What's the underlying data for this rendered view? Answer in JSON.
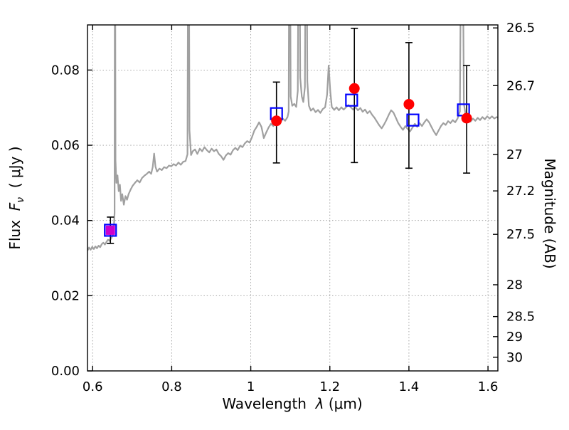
{
  "figure": {
    "background": "#ffffff"
  },
  "chart_data": {
    "type": "line",
    "title": "",
    "xlabel_parts": {
      "prefix": "Wavelength  ",
      "symbol": "λ",
      "suffix": " (μm)"
    },
    "ylabel_parts": {
      "prefix": "Flux  ",
      "symbol": "F",
      "subscript": "ν",
      "suffix": "  ( μJy )"
    },
    "y2label": "Magnitude (AB)",
    "axes": {
      "xlim": [
        0.587,
        1.625
      ],
      "ylim": [
        0,
        0.092
      ],
      "grid": true,
      "xticks": {
        "values": [
          0.6,
          0.8,
          1.0,
          1.2,
          1.4,
          1.6
        ],
        "labels": [
          "0.6",
          "0.8",
          "1",
          "1.2",
          "1.4",
          "1.6"
        ]
      },
      "yticks": {
        "values": [
          0.0,
          0.02,
          0.04,
          0.06,
          0.08
        ],
        "labels": [
          "0.00",
          "0.02",
          "0.04",
          "0.06",
          "0.08"
        ]
      },
      "y2ticks": {
        "mag_zeropoint": 23.9,
        "values": [
          26.5,
          26.7,
          27,
          27.2,
          27.5,
          28,
          28.5,
          29,
          30
        ],
        "labels": [
          "26.5",
          "26.7",
          "27",
          "27.2",
          "27.5",
          "28",
          "28.5",
          "29",
          "30"
        ]
      }
    },
    "style": {
      "spectrum_color": "#a0a0a0",
      "model_marker_color": "#0000ff",
      "observed_marker_color": "#ff0000",
      "observed_first_marker_color": "#cc00cc",
      "errorbar_color": "#000000",
      "grid_color": "#9a9a9a",
      "axis_color": "#000000"
    },
    "series": [
      {
        "name": "model-spectrum",
        "kind": "line",
        "points": [
          [
            0.587,
            0.032
          ],
          [
            0.591,
            0.0328
          ],
          [
            0.595,
            0.0322
          ],
          [
            0.599,
            0.033
          ],
          [
            0.603,
            0.0324
          ],
          [
            0.607,
            0.0331
          ],
          [
            0.611,
            0.0326
          ],
          [
            0.615,
            0.0333
          ],
          [
            0.619,
            0.0329
          ],
          [
            0.623,
            0.0337
          ],
          [
            0.627,
            0.0341
          ],
          [
            0.631,
            0.0336
          ],
          [
            0.635,
            0.0343
          ],
          [
            0.639,
            0.0349
          ],
          [
            0.643,
            0.0346
          ],
          [
            0.647,
            0.0353
          ],
          [
            0.65,
            0.0359
          ],
          [
            0.653,
            0.0366
          ],
          [
            0.6555,
            0.042
          ],
          [
            0.6565,
            0.15
          ],
          [
            0.6578,
            0.056
          ],
          [
            0.66,
            0.05
          ],
          [
            0.663,
            0.052
          ],
          [
            0.666,
            0.0478
          ],
          [
            0.669,
            0.0495
          ],
          [
            0.672,
            0.0452
          ],
          [
            0.675,
            0.047
          ],
          [
            0.679,
            0.0442
          ],
          [
            0.683,
            0.0465
          ],
          [
            0.687,
            0.0455
          ],
          [
            0.691,
            0.047
          ],
          [
            0.696,
            0.0482
          ],
          [
            0.701,
            0.0492
          ],
          [
            0.707,
            0.05
          ],
          [
            0.713,
            0.0507
          ],
          [
            0.719,
            0.0501
          ],
          [
            0.725,
            0.0513
          ],
          [
            0.731,
            0.0519
          ],
          [
            0.737,
            0.0524
          ],
          [
            0.743,
            0.053
          ],
          [
            0.748,
            0.0524
          ],
          [
            0.752,
            0.0542
          ],
          [
            0.7555,
            0.0578
          ],
          [
            0.759,
            0.0543
          ],
          [
            0.763,
            0.053
          ],
          [
            0.769,
            0.0538
          ],
          [
            0.775,
            0.0534
          ],
          [
            0.781,
            0.0542
          ],
          [
            0.787,
            0.0539
          ],
          [
            0.793,
            0.0546
          ],
          [
            0.799,
            0.0544
          ],
          [
            0.805,
            0.055
          ],
          [
            0.811,
            0.0546
          ],
          [
            0.817,
            0.0554
          ],
          [
            0.823,
            0.0548
          ],
          [
            0.829,
            0.0556
          ],
          [
            0.835,
            0.0558
          ],
          [
            0.84,
            0.0576
          ],
          [
            0.8425,
            0.15
          ],
          [
            0.845,
            0.064
          ],
          [
            0.849,
            0.0574
          ],
          [
            0.853,
            0.0584
          ],
          [
            0.859,
            0.0589
          ],
          [
            0.865,
            0.0577
          ],
          [
            0.871,
            0.0591
          ],
          [
            0.877,
            0.0584
          ],
          [
            0.883,
            0.0595
          ],
          [
            0.889,
            0.0587
          ],
          [
            0.895,
            0.0581
          ],
          [
            0.901,
            0.0591
          ],
          [
            0.907,
            0.0584
          ],
          [
            0.913,
            0.0589
          ],
          [
            0.919,
            0.0577
          ],
          [
            0.925,
            0.0571
          ],
          [
            0.931,
            0.0561
          ],
          [
            0.937,
            0.0573
          ],
          [
            0.943,
            0.0579
          ],
          [
            0.949,
            0.0575
          ],
          [
            0.955,
            0.0587
          ],
          [
            0.961,
            0.0593
          ],
          [
            0.967,
            0.0587
          ],
          [
            0.973,
            0.0599
          ],
          [
            0.979,
            0.0595
          ],
          [
            0.985,
            0.0605
          ],
          [
            0.991,
            0.0611
          ],
          [
            0.997,
            0.0607
          ],
          [
            1.003,
            0.0621
          ],
          [
            1.009,
            0.0639
          ],
          [
            1.015,
            0.0649
          ],
          [
            1.021,
            0.0661
          ],
          [
            1.027,
            0.0649
          ],
          [
            1.033,
            0.0619
          ],
          [
            1.039,
            0.0634
          ],
          [
            1.045,
            0.0647
          ],
          [
            1.051,
            0.0657
          ],
          [
            1.057,
            0.0651
          ],
          [
            1.063,
            0.0661
          ],
          [
            1.069,
            0.0667
          ],
          [
            1.075,
            0.0661
          ],
          [
            1.081,
            0.0671
          ],
          [
            1.087,
            0.0665
          ],
          [
            1.093,
            0.0675
          ],
          [
            1.096,
            0.069
          ],
          [
            1.098,
            0.15
          ],
          [
            1.101,
            0.073
          ],
          [
            1.105,
            0.0705
          ],
          [
            1.11,
            0.071
          ],
          [
            1.115,
            0.0702
          ],
          [
            1.119,
            0.0745
          ],
          [
            1.122,
            0.15
          ],
          [
            1.125,
            0.078
          ],
          [
            1.129,
            0.073
          ],
          [
            1.133,
            0.0715
          ],
          [
            1.137,
            0.0755
          ],
          [
            1.14,
            0.15
          ],
          [
            1.143,
            0.077
          ],
          [
            1.147,
            0.0705
          ],
          [
            1.152,
            0.0692
          ],
          [
            1.158,
            0.0698
          ],
          [
            1.164,
            0.0688
          ],
          [
            1.17,
            0.0694
          ],
          [
            1.176,
            0.0686
          ],
          [
            1.182,
            0.0696
          ],
          [
            1.188,
            0.0701
          ],
          [
            1.193,
            0.0735
          ],
          [
            1.197,
            0.0812
          ],
          [
            1.201,
            0.0745
          ],
          [
            1.205,
            0.0702
          ],
          [
            1.211,
            0.0694
          ],
          [
            1.217,
            0.0701
          ],
          [
            1.223,
            0.0693
          ],
          [
            1.229,
            0.0701
          ],
          [
            1.235,
            0.0695
          ],
          [
            1.241,
            0.0701
          ],
          [
            1.247,
            0.0707
          ],
          [
            1.253,
            0.0701
          ],
          [
            1.259,
            0.0695
          ],
          [
            1.265,
            0.0701
          ],
          [
            1.271,
            0.0693
          ],
          [
            1.277,
            0.0699
          ],
          [
            1.283,
            0.0689
          ],
          [
            1.289,
            0.0695
          ],
          [
            1.295,
            0.0685
          ],
          [
            1.301,
            0.0691
          ],
          [
            1.307,
            0.0681
          ],
          [
            1.313,
            0.0673
          ],
          [
            1.319,
            0.0663
          ],
          [
            1.325,
            0.0653
          ],
          [
            1.331,
            0.0645
          ],
          [
            1.337,
            0.0655
          ],
          [
            1.343,
            0.0667
          ],
          [
            1.349,
            0.0681
          ],
          [
            1.355,
            0.0693
          ],
          [
            1.361,
            0.0687
          ],
          [
            1.367,
            0.0673
          ],
          [
            1.373,
            0.0659
          ],
          [
            1.379,
            0.0649
          ],
          [
            1.385,
            0.0641
          ],
          [
            1.391,
            0.0651
          ],
          [
            1.397,
            0.0643
          ],
          [
            1.403,
            0.0637
          ],
          [
            1.409,
            0.0647
          ],
          [
            1.415,
            0.0657
          ],
          [
            1.421,
            0.0649
          ],
          [
            1.427,
            0.0659
          ],
          [
            1.433,
            0.0651
          ],
          [
            1.439,
            0.0661
          ],
          [
            1.445,
            0.0669
          ],
          [
            1.451,
            0.0661
          ],
          [
            1.457,
            0.0649
          ],
          [
            1.463,
            0.0637
          ],
          [
            1.469,
            0.0627
          ],
          [
            1.475,
            0.0639
          ],
          [
            1.481,
            0.0651
          ],
          [
            1.487,
            0.0659
          ],
          [
            1.493,
            0.0654
          ],
          [
            1.499,
            0.0664
          ],
          [
            1.505,
            0.0659
          ],
          [
            1.511,
            0.0667
          ],
          [
            1.517,
            0.0661
          ],
          [
            1.523,
            0.0671
          ],
          [
            1.529,
            0.069
          ],
          [
            1.534,
            0.15
          ],
          [
            1.539,
            0.071
          ],
          [
            1.544,
            0.0678
          ],
          [
            1.55,
            0.067
          ],
          [
            1.556,
            0.0663
          ],
          [
            1.562,
            0.0671
          ],
          [
            1.568,
            0.0665
          ],
          [
            1.574,
            0.0673
          ],
          [
            1.58,
            0.0667
          ],
          [
            1.586,
            0.0675
          ],
          [
            1.592,
            0.0669
          ],
          [
            1.598,
            0.0677
          ],
          [
            1.604,
            0.0671
          ],
          [
            1.61,
            0.0677
          ],
          [
            1.616,
            0.0671
          ],
          [
            1.622,
            0.0675
          ],
          [
            1.625,
            0.0673
          ]
        ]
      },
      {
        "name": "model-photometry",
        "kind": "scatter",
        "marker": "open-square",
        "points": [
          [
            0.645,
            0.0374
          ],
          [
            1.065,
            0.0684
          ],
          [
            1.255,
            0.072
          ],
          [
            1.41,
            0.0667
          ],
          [
            1.538,
            0.0694
          ]
        ]
      },
      {
        "name": "observed-photometry",
        "kind": "scatter-errorbar",
        "points": [
          {
            "x": 0.645,
            "y": 0.0374,
            "err_lo": 0.0035,
            "err_hi": 0.0035,
            "marker": "filled-square",
            "color_key": "observed_first_marker_color"
          },
          {
            "x": 1.065,
            "y": 0.0665,
            "err_lo": 0.0112,
            "err_hi": 0.0103,
            "marker": "filled-circle",
            "color_key": "observed_marker_color"
          },
          {
            "x": 1.262,
            "y": 0.0751,
            "err_lo": 0.0197,
            "err_hi": 0.016,
            "marker": "filled-circle",
            "color_key": "observed_marker_color"
          },
          {
            "x": 1.4,
            "y": 0.0709,
            "err_lo": 0.017,
            "err_hi": 0.0164,
            "marker": "filled-circle",
            "color_key": "observed_marker_color"
          },
          {
            "x": 1.546,
            "y": 0.0672,
            "err_lo": 0.0146,
            "err_hi": 0.014,
            "marker": "filled-circle",
            "color_key": "observed_marker_color"
          }
        ]
      }
    ]
  }
}
